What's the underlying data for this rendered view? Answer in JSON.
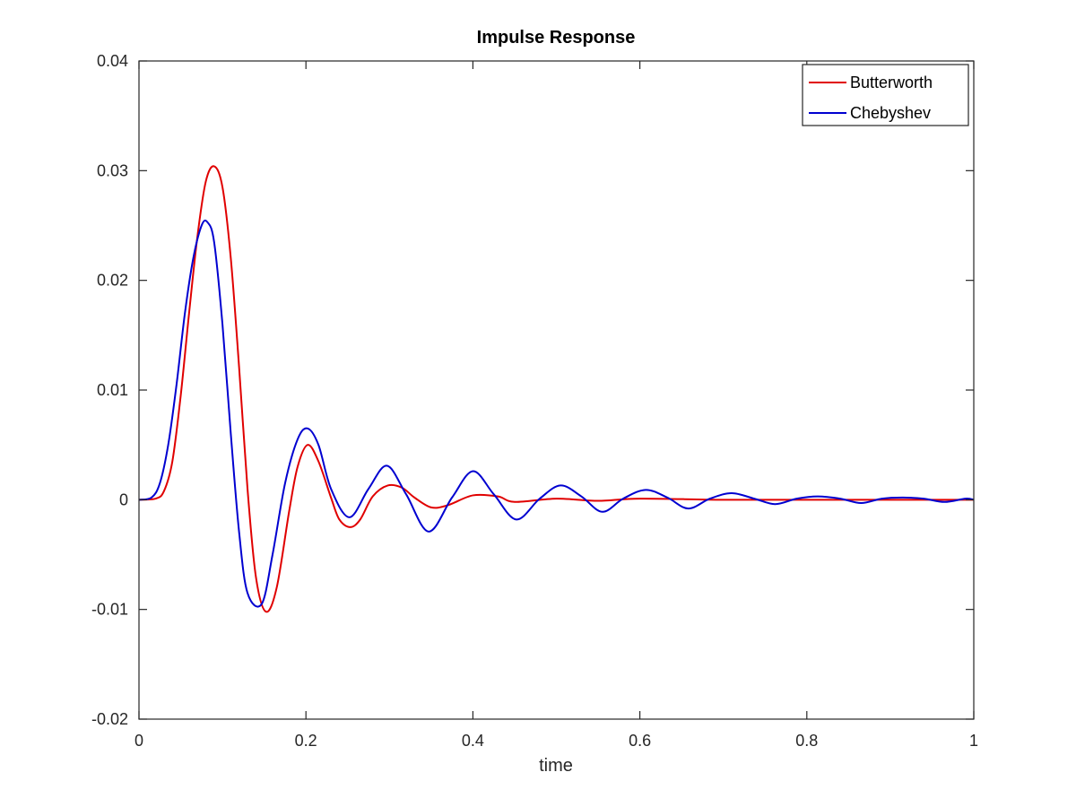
{
  "chart_data": {
    "type": "line",
    "title": "Impulse Response",
    "xlabel": "time",
    "ylabel": "",
    "xlim": [
      0,
      1
    ],
    "ylim": [
      -0.02,
      0.04
    ],
    "xticks": [
      0,
      0.2,
      0.4,
      0.6,
      0.8,
      1
    ],
    "xtick_labels": [
      "0",
      "0.2",
      "0.4",
      "0.6",
      "0.8",
      "1"
    ],
    "yticks": [
      -0.02,
      -0.01,
      0,
      0.01,
      0.02,
      0.03,
      0.04
    ],
    "ytick_labels": [
      "-0.02",
      "-0.01",
      "0",
      "0.01",
      "0.02",
      "0.03",
      "0.04"
    ],
    "grid": false,
    "legend_position": "top-right",
    "series": [
      {
        "name": "Butterworth",
        "color": "#e00000",
        "x": [
          0,
          0.02,
          0.03,
          0.04,
          0.05,
          0.06,
          0.07,
          0.08,
          0.09,
          0.1,
          0.11,
          0.12,
          0.13,
          0.14,
          0.152,
          0.165,
          0.18,
          0.19,
          0.202,
          0.215,
          0.23,
          0.24,
          0.253,
          0.265,
          0.28,
          0.298,
          0.315,
          0.33,
          0.35,
          0.37,
          0.4,
          0.43,
          0.45,
          0.5,
          0.55,
          0.6,
          0.7,
          0.8,
          0.9,
          1.0
        ],
        "y": [
          0,
          0.0001,
          0.0008,
          0.0035,
          0.0095,
          0.017,
          0.024,
          0.029,
          0.0304,
          0.0285,
          0.022,
          0.012,
          0.001,
          -0.007,
          -0.0102,
          -0.008,
          -0.001,
          0.003,
          0.005,
          0.0035,
          0.0002,
          -0.0018,
          -0.0025,
          -0.0018,
          0.0003,
          0.0013,
          0.0011,
          0.0002,
          -0.0007,
          -0.0005,
          0.0004,
          0.0003,
          -0.0002,
          0.0001,
          -0.0001,
          0.0001,
          0,
          0,
          0,
          0
        ]
      },
      {
        "name": "Chebyshev",
        "color": "#0000d0",
        "x": [
          0,
          0.015,
          0.025,
          0.035,
          0.045,
          0.055,
          0.065,
          0.075,
          0.082,
          0.09,
          0.1,
          0.11,
          0.12,
          0.13,
          0.147,
          0.16,
          0.175,
          0.19,
          0.202,
          0.215,
          0.23,
          0.252,
          0.275,
          0.297,
          0.32,
          0.347,
          0.375,
          0.4,
          0.425,
          0.452,
          0.48,
          0.505,
          0.53,
          0.555,
          0.58,
          0.607,
          0.633,
          0.658,
          0.684,
          0.71,
          0.737,
          0.762,
          0.788,
          0.813,
          0.84,
          0.865,
          0.89,
          0.915,
          0.94,
          0.965,
          0.99,
          1.0
        ],
        "y": [
          0,
          0.0002,
          0.0015,
          0.005,
          0.0105,
          0.017,
          0.022,
          0.025,
          0.0253,
          0.0235,
          0.016,
          0.006,
          -0.003,
          -0.0085,
          -0.0095,
          -0.005,
          0.0015,
          0.0055,
          0.0065,
          0.005,
          0.001,
          -0.0016,
          0.001,
          0.0031,
          0.0005,
          -0.0029,
          0.0002,
          0.0026,
          0.0005,
          -0.0018,
          0.0001,
          0.0013,
          0.0003,
          -0.0011,
          0.0001,
          0.0009,
          0.0002,
          -0.0008,
          0.0001,
          0.0006,
          0.0001,
          -0.0004,
          0.0001,
          0.0003,
          0.0001,
          -0.0003,
          0.0001,
          0.0002,
          0.0001,
          -0.0002,
          0.0001,
          0
        ]
      }
    ]
  }
}
